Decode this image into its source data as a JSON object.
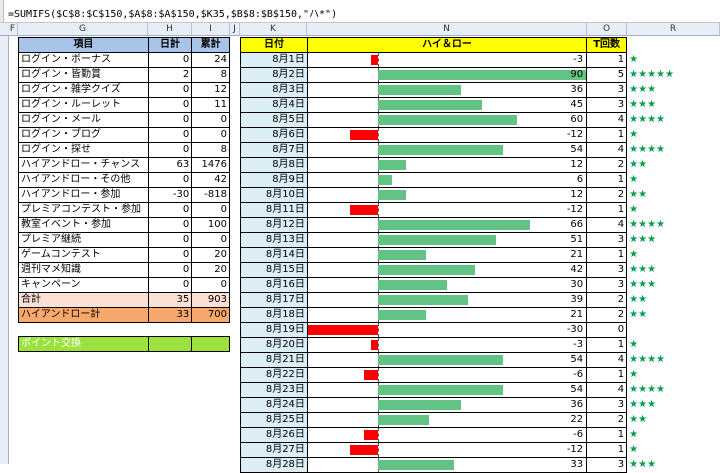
{
  "formula": "=SUMIFS($C$8:$C$150,$A$8:$A$150,$K35,$B$8:$B$150,\"ハ*\")",
  "columns": [
    "F",
    "G",
    "H",
    "I",
    "J",
    "K",
    "N",
    "O",
    "R"
  ],
  "left_table": {
    "headers": {
      "item": "項目",
      "daily": "日計",
      "cumulative": "累計"
    },
    "rows": [
      {
        "name": "ログイン・ボーナス",
        "daily": "0",
        "cum": "24"
      },
      {
        "name": "ログイン・皆勤賞",
        "daily": "2",
        "cum": "8"
      },
      {
        "name": "ログイン・雑学クイズ",
        "daily": "0",
        "cum": "12"
      },
      {
        "name": "ログイン・ルーレット",
        "daily": "0",
        "cum": "11"
      },
      {
        "name": "ログイン・メール",
        "daily": "0",
        "cum": "0"
      },
      {
        "name": "ログイン・ブログ",
        "daily": "0",
        "cum": "0"
      },
      {
        "name": "ログイン・探せ",
        "daily": "0",
        "cum": "8"
      },
      {
        "name": "ハイアンドロー・チャンス",
        "daily": "63",
        "cum": "1476"
      },
      {
        "name": "ハイアンドロー・その他",
        "daily": "0",
        "cum": "42"
      },
      {
        "name": "ハイアンドロー・参加",
        "daily": "-30",
        "cum": "-818"
      },
      {
        "name": "プレミアコンテスト・参加",
        "daily": "0",
        "cum": "0"
      },
      {
        "name": "教室イベント・参加",
        "daily": "0",
        "cum": "100"
      },
      {
        "name": "プレミア継続",
        "daily": "0",
        "cum": "0"
      },
      {
        "name": "ゲームコンテスト",
        "daily": "0",
        "cum": "20"
      },
      {
        "name": "週刊マメ知識",
        "daily": "0",
        "cum": "20"
      },
      {
        "name": "キャンペーン",
        "daily": "0",
        "cum": "0"
      }
    ],
    "total": {
      "name": "合計",
      "daily": "35",
      "cum": "903"
    },
    "hl_total": {
      "name": "ハイアンドロー計",
      "daily": "33",
      "cum": "700"
    },
    "points": {
      "name": "ポイント交換"
    }
  },
  "right_table": {
    "headers": {
      "date": "日付",
      "hilo": "ハイ＆ロー",
      "count": "T回数"
    },
    "star_color": "#00a04a",
    "pos_bar_color": "#63c384",
    "neg_bar_color": "#ff0000",
    "value_min": -30,
    "value_max": 90,
    "rows": [
      {
        "date": "8月1日",
        "value": -3,
        "count": "1",
        "stars": 1
      },
      {
        "date": "8月2日",
        "value": 90,
        "count": "5",
        "stars": 5
      },
      {
        "date": "8月3日",
        "value": 36,
        "count": "3",
        "stars": 3
      },
      {
        "date": "8月4日",
        "value": 45,
        "count": "3",
        "stars": 3
      },
      {
        "date": "8月5日",
        "value": 60,
        "count": "4",
        "stars": 4
      },
      {
        "date": "8月6日",
        "value": -12,
        "count": "1",
        "stars": 1
      },
      {
        "date": "8月7日",
        "value": 54,
        "count": "4",
        "stars": 4
      },
      {
        "date": "8月8日",
        "value": 12,
        "count": "2",
        "stars": 2
      },
      {
        "date": "8月9日",
        "value": 6,
        "count": "1",
        "stars": 1
      },
      {
        "date": "8月10日",
        "value": 12,
        "count": "2",
        "stars": 2
      },
      {
        "date": "8月11日",
        "value": -12,
        "count": "1",
        "stars": 1
      },
      {
        "date": "8月12日",
        "value": 66,
        "count": "4",
        "stars": 4
      },
      {
        "date": "8月13日",
        "value": 51,
        "count": "3",
        "stars": 3
      },
      {
        "date": "8月14日",
        "value": 21,
        "count": "1",
        "stars": 1
      },
      {
        "date": "8月15日",
        "value": 42,
        "count": "3",
        "stars": 3
      },
      {
        "date": "8月16日",
        "value": 30,
        "count": "3",
        "stars": 3
      },
      {
        "date": "8月17日",
        "value": 39,
        "count": "2",
        "stars": 2
      },
      {
        "date": "8月18日",
        "value": 21,
        "count": "2",
        "stars": 2
      },
      {
        "date": "8月19日",
        "value": -30,
        "count": "0",
        "stars": 0
      },
      {
        "date": "8月20日",
        "value": -3,
        "count": "1",
        "stars": 1
      },
      {
        "date": "8月21日",
        "value": 54,
        "count": "4",
        "stars": 4
      },
      {
        "date": "8月22日",
        "value": -6,
        "count": "1",
        "stars": 1
      },
      {
        "date": "8月23日",
        "value": 54,
        "count": "4",
        "stars": 4
      },
      {
        "date": "8月24日",
        "value": 36,
        "count": "3",
        "stars": 3
      },
      {
        "date": "8月25日",
        "value": 22,
        "count": "2",
        "stars": 2
      },
      {
        "date": "8月26日",
        "value": -6,
        "count": "1",
        "stars": 1
      },
      {
        "date": "8月27日",
        "value": -12,
        "count": "1",
        "stars": 1
      },
      {
        "date": "8月28日",
        "value": 33,
        "count": "3",
        "stars": 3
      }
    ]
  }
}
